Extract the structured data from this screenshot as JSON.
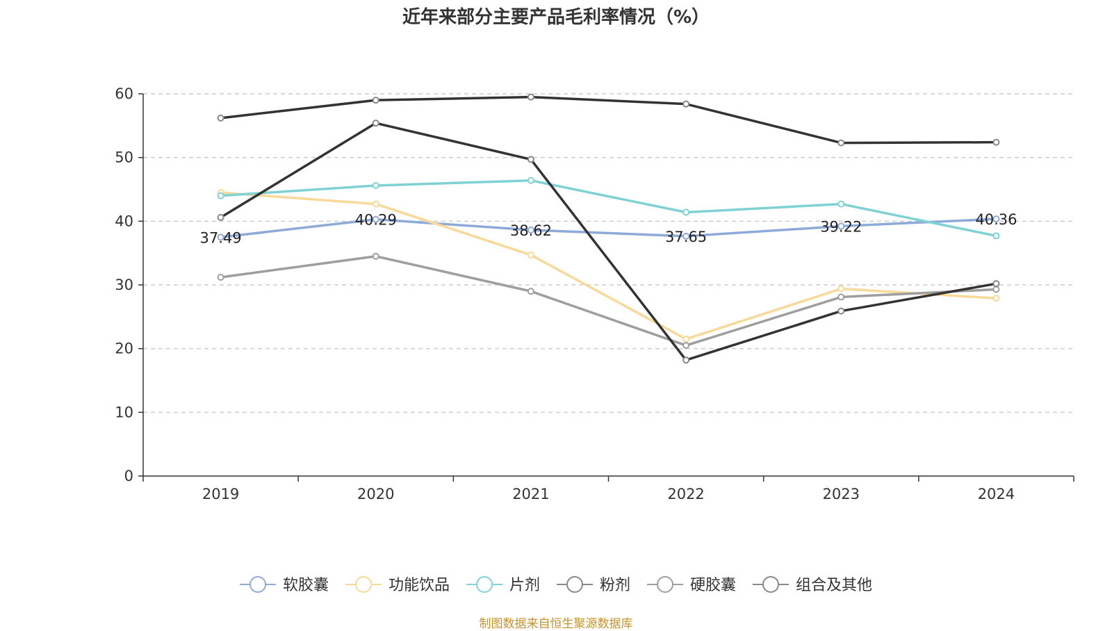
{
  "chart_data": {
    "type": "line",
    "title": "近年来部分主要产品毛利率情况（%）",
    "categories": [
      "2019",
      "2020",
      "2021",
      "2022",
      "2023",
      "2024"
    ],
    "ylim": [
      0,
      60
    ],
    "yticks": [
      0,
      10,
      20,
      30,
      40,
      50,
      60
    ],
    "grid": true,
    "legend_position": "bottom",
    "series": [
      {
        "name": "软胶囊",
        "color": "#8eaad8",
        "values": [
          37.49,
          40.29,
          38.62,
          37.65,
          39.22,
          40.36
        ],
        "labels": [
          "37.49",
          "40.29",
          "38.62",
          "37.65",
          "39.22",
          "40.36"
        ]
      },
      {
        "name": "功能饮品",
        "color": "#f9d998",
        "values": [
          44.5,
          42.7,
          34.7,
          21.5,
          29.4,
          27.9
        ]
      },
      {
        "name": "片剂",
        "color": "#7fd2d4",
        "values": [
          44.0,
          45.6,
          46.4,
          41.4,
          42.7,
          37.7
        ]
      },
      {
        "name": "粉剂",
        "color": "#333333",
        "values": [
          56.2,
          59.0,
          59.5,
          58.4,
          52.3,
          52.4
        ]
      },
      {
        "name": "硬胶囊",
        "color": "#9e9e9e",
        "values": [
          31.2,
          34.5,
          29.0,
          20.5,
          28.1,
          29.3
        ]
      },
      {
        "name": "组合及其他",
        "color": "#333333",
        "values": [
          40.6,
          55.4,
          49.7,
          18.2,
          25.9,
          30.2
        ]
      }
    ],
    "source": "制图数据来自恒生聚源数据库"
  }
}
